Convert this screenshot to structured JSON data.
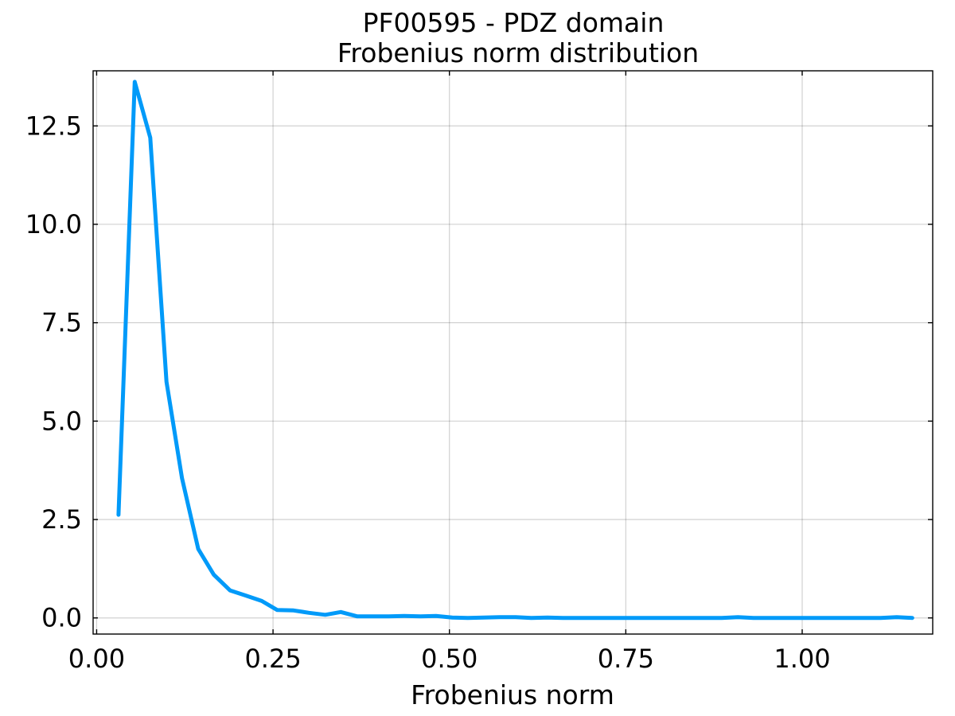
{
  "chart_data": {
    "type": "line",
    "title": [
      "PF00595 - PDZ domain",
      "Frobenius norm distribution"
    ],
    "xlabel": "Frobenius norm",
    "ylabel": "",
    "xlim": [
      -0.005,
      1.185
    ],
    "ylim": [
      -0.41,
      13.9
    ],
    "x_ticks": [
      0.0,
      0.25,
      0.5,
      0.75,
      1.0
    ],
    "x_tick_labels": [
      "0.00",
      "0.25",
      "0.50",
      "0.75",
      "1.00"
    ],
    "y_ticks": [
      0.0,
      2.5,
      5.0,
      7.5,
      10.0,
      12.5
    ],
    "y_tick_labels": [
      "0.0",
      "2.5",
      "5.0",
      "7.5",
      "10.0",
      "12.5"
    ],
    "grid": true,
    "legend": "none",
    "series": [
      {
        "color": "#009af9",
        "x": [
          0.031,
          0.054,
          0.076,
          0.099,
          0.121,
          0.144,
          0.166,
          0.189,
          0.211,
          0.234,
          0.256,
          0.279,
          0.301,
          0.324,
          0.346,
          0.369,
          0.391,
          0.414,
          0.436,
          0.459,
          0.481,
          0.504,
          0.526,
          0.549,
          0.571,
          0.594,
          0.616,
          0.639,
          0.661,
          0.684,
          0.706,
          0.729,
          0.751,
          0.774,
          0.796,
          0.819,
          0.841,
          0.864,
          0.886,
          0.909,
          0.931,
          0.954,
          0.976,
          0.999,
          1.021,
          1.044,
          1.066,
          1.089,
          1.111,
          1.134,
          1.156
        ],
        "y": [
          2.62,
          13.62,
          12.2,
          6.0,
          3.55,
          1.75,
          1.1,
          0.7,
          0.57,
          0.43,
          0.2,
          0.19,
          0.13,
          0.08,
          0.15,
          0.04,
          0.04,
          0.04,
          0.05,
          0.04,
          0.05,
          0.01,
          0.0,
          0.01,
          0.02,
          0.02,
          0.0,
          0.01,
          0.0,
          0.0,
          0.0,
          0.0,
          0.0,
          0.0,
          0.0,
          0.0,
          0.0,
          0.0,
          0.0,
          0.02,
          0.0,
          0.0,
          0.0,
          0.0,
          0.0,
          0.0,
          0.0,
          0.0,
          0.0,
          0.02,
          0.0
        ]
      }
    ]
  }
}
